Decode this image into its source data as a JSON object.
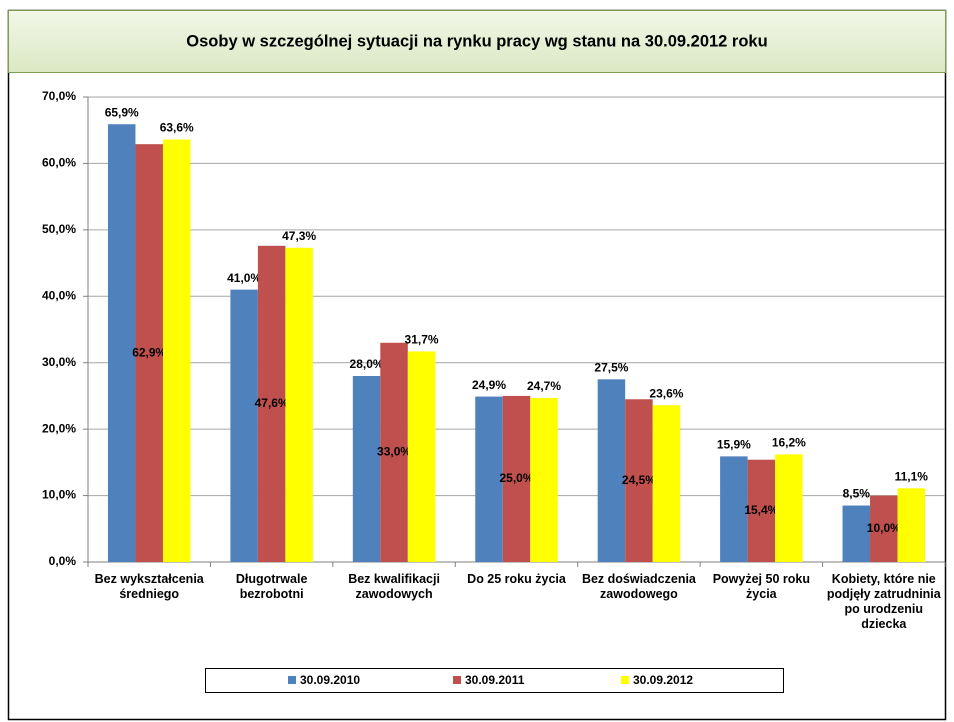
{
  "chart_data": {
    "type": "bar",
    "title": "Osoby w szczególnej sytuacji na rynku pracy wg stanu na 30.09.2012 roku",
    "categories": [
      "Bez wykształcenia średniego",
      "Długotrwale bezrobotni",
      "Bez kwalifikacji zawodowych",
      "Do 25 roku życia",
      "Bez doświadczenia zawodowego",
      "Powyżej 50 roku życia",
      "Kobiety, które nie podjęły zatrudninia po urodzeniu dziecka"
    ],
    "series": [
      {
        "name": "30.09.2010",
        "color": "#4f81bd",
        "values": [
          65.9,
          41.0,
          28.0,
          24.9,
          27.5,
          15.9,
          8.5
        ],
        "value_labels": [
          "65,9%",
          "41,0%",
          "28,0%",
          "24,9%",
          "27,5%",
          "15,9%",
          "8,5%"
        ]
      },
      {
        "name": "30.09.2011",
        "color": "#c0504d",
        "values": [
          62.9,
          47.6,
          33.0,
          25.0,
          24.5,
          15.4,
          10.0
        ],
        "value_labels": [
          "62,9%",
          "47,6%",
          "33,0%",
          "25,0%",
          "24,5%",
          "15,4%",
          "10,0%"
        ]
      },
      {
        "name": "30.09.2012",
        "color": "#ffff00",
        "values": [
          63.6,
          47.3,
          31.7,
          24.7,
          23.6,
          16.2,
          11.1
        ],
        "value_labels": [
          "63,6%",
          "47,3%",
          "31,7%",
          "24,7%",
          "23,6%",
          "16,2%",
          "11,1%"
        ]
      }
    ],
    "ylim": [
      0,
      70
    ],
    "yticks": [
      {
        "value": 0,
        "label": "0,0%"
      },
      {
        "value": 10,
        "label": "10,0%"
      },
      {
        "value": 20,
        "label": "20,0%"
      },
      {
        "value": 30,
        "label": "30,0%"
      },
      {
        "value": 40,
        "label": "40,0%"
      },
      {
        "value": 50,
        "label": "50,0%"
      },
      {
        "value": 60,
        "label": "60,0%"
      },
      {
        "value": 70,
        "label": "70,0%"
      }
    ],
    "grid": true,
    "legend": "bottom"
  }
}
